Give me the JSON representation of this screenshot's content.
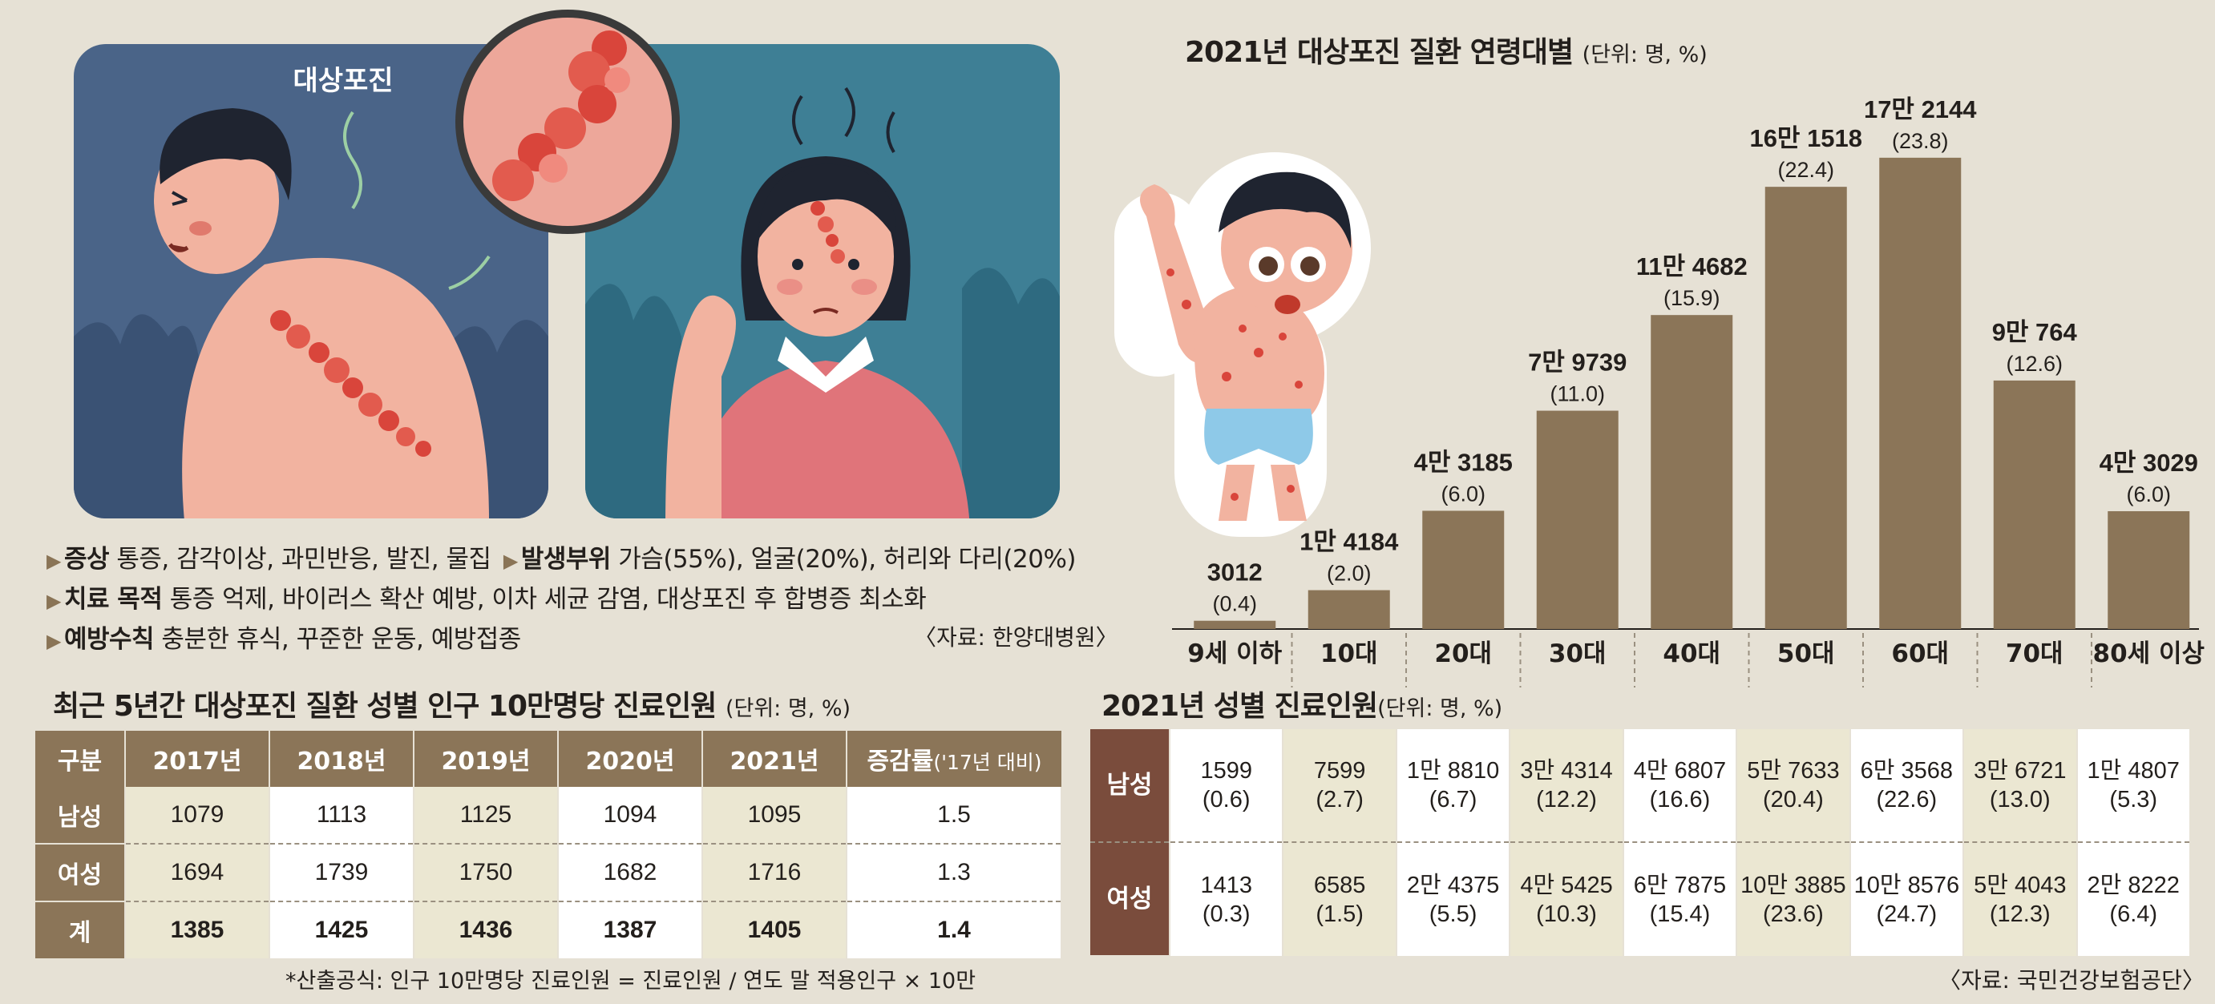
{
  "illustration": {
    "label": "대상포진",
    "colors": {
      "left_bg": "#4a6488",
      "right_bg": "#3e7f95",
      "rash": "#d9453b",
      "skin": "#f2b3a0"
    }
  },
  "info": {
    "symptom_label": "증상",
    "symptom_text": "통증, 감각이상, 과민반응, 발진, 물집",
    "site_label": "발생부위",
    "site_text": "가슴(55%), 얼굴(20%), 허리와 다리(20%)",
    "treatment_label": "치료 목적",
    "treatment_text": "통증 억제, 바이러스 확산 예방, 이차 세균 감염, 대상포진 후 합병증 최소화",
    "prevention_label": "예방수칙",
    "prevention_text": "충분한 휴식, 꾸준한 운동, 예방접종",
    "source": "〈자료: 한양대병원〉"
  },
  "chart_data": {
    "type": "bar",
    "title": "2021년 대상포진 질환 연령대별",
    "unit": "(단위: 명, %)",
    "categories": [
      "9세 이하",
      "10대",
      "20대",
      "30대",
      "40대",
      "50대",
      "60대",
      "70대",
      "80세 이상"
    ],
    "values": [
      3012,
      14184,
      43185,
      79739,
      114682,
      161518,
      172144,
      90764,
      43029
    ],
    "value_labels": [
      "3012",
      "1만 4184",
      "4만 3185",
      "7만 9739",
      "11만 4682",
      "16만 1518",
      "17만 2144",
      "9만 764",
      "4만 3029"
    ],
    "percents": [
      "(0.4)",
      "(2.0)",
      "(6.0)",
      "(11.0)",
      "(15.9)",
      "(22.4)",
      "(23.8)",
      "(12.6)",
      "(6.0)"
    ],
    "ylim": [
      0,
      180000
    ],
    "bar_color": "#8b7558",
    "xlabel": "",
    "ylabel": ""
  },
  "table1": {
    "title": "최근 5년간 대상포진 질환 성별 인구 10만명당 진료인원",
    "unit": "(단위: 명, %)",
    "headers": [
      "구분",
      "2017년",
      "2018년",
      "2019년",
      "2020년",
      "2021년",
      "증감률"
    ],
    "growth_note": "('17년 대비)",
    "rows": [
      {
        "label": "남성",
        "values": [
          "1079",
          "1113",
          "1125",
          "1094",
          "1095",
          "1.5"
        ]
      },
      {
        "label": "여성",
        "values": [
          "1694",
          "1739",
          "1750",
          "1682",
          "1716",
          "1.3"
        ]
      },
      {
        "label": "계",
        "values": [
          "1385",
          "1425",
          "1436",
          "1387",
          "1405",
          "1.4"
        ]
      }
    ],
    "footnote": "*산출공식: 인구 10만명당 진료인원 = 진료인원 / 연도 말 적용인구 × 10만"
  },
  "table2": {
    "title": "2021년 성별 진료인원",
    "unit": "(단위: 명, %)",
    "rows": [
      {
        "label": "남성",
        "values": [
          "1599",
          "7599",
          "1만 8810",
          "3만 4314",
          "4만 6807",
          "5만 7633",
          "6만 3568",
          "3만 6721",
          "1만 4807"
        ],
        "percents": [
          "(0.6)",
          "(2.7)",
          "(6.7)",
          "(12.2)",
          "(16.6)",
          "(20.4)",
          "(22.6)",
          "(13.0)",
          "(5.3)"
        ]
      },
      {
        "label": "여성",
        "values": [
          "1413",
          "6585",
          "2만 4375",
          "4만 5425",
          "6만 7875",
          "10만 3885",
          "10만 8576",
          "5만 4043",
          "2만 8222"
        ],
        "percents": [
          "(0.3)",
          "(1.5)",
          "(5.5)",
          "(10.3)",
          "(15.4)",
          "(23.6)",
          "(24.7)",
          "(12.3)",
          "(6.4)"
        ]
      }
    ],
    "source": "〈자료: 국민건강보험공단〉"
  }
}
